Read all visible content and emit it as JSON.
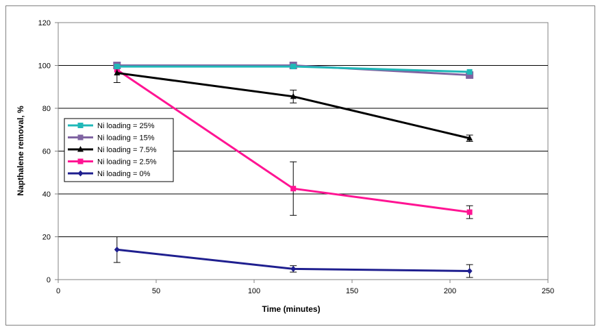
{
  "chart_data": {
    "type": "line",
    "title": "",
    "xlabel": "Time  (minutes)",
    "ylabel": "Napthalene removal, %",
    "xlim": [
      0,
      250
    ],
    "ylim": [
      0,
      120
    ],
    "xticks": [
      0,
      50,
      100,
      150,
      200,
      250
    ],
    "yticks": [
      0,
      20,
      40,
      60,
      80,
      100,
      120
    ],
    "grid": "horizontal",
    "legend_position": "left",
    "series": [
      {
        "name": "Ni loading = 25%",
        "color": "#20B8B8",
        "marker": "square",
        "x": [
          30,
          120,
          210
        ],
        "y": [
          99.5,
          99.5,
          97
        ],
        "error": [
          null,
          null,
          null
        ]
      },
      {
        "name": "Ni loading = 15%",
        "color": "#8064A2",
        "marker": "square-large",
        "x": [
          30,
          120,
          210
        ],
        "y": [
          100,
          100,
          95.5
        ],
        "error": [
          null,
          null,
          null
        ]
      },
      {
        "name": "Ni loading = 7.5%",
        "color": "#000000",
        "marker": "triangle",
        "x": [
          30,
          120,
          210
        ],
        "y": [
          96.5,
          85.5,
          66
        ],
        "error": [
          4.5,
          3,
          1.5
        ]
      },
      {
        "name": "Ni loading = 2.5%",
        "color": "#FF1493",
        "marker": "square",
        "x": [
          30,
          120,
          210
        ],
        "y": [
          98,
          42.5,
          31.5
        ],
        "error": [
          null,
          12.5,
          3
        ]
      },
      {
        "name": "Ni loading = 0%",
        "color": "#1F1F8F",
        "marker": "diamond",
        "x": [
          30,
          120,
          210
        ],
        "y": [
          14,
          5,
          4
        ],
        "error": [
          6,
          1.5,
          3
        ]
      }
    ]
  }
}
